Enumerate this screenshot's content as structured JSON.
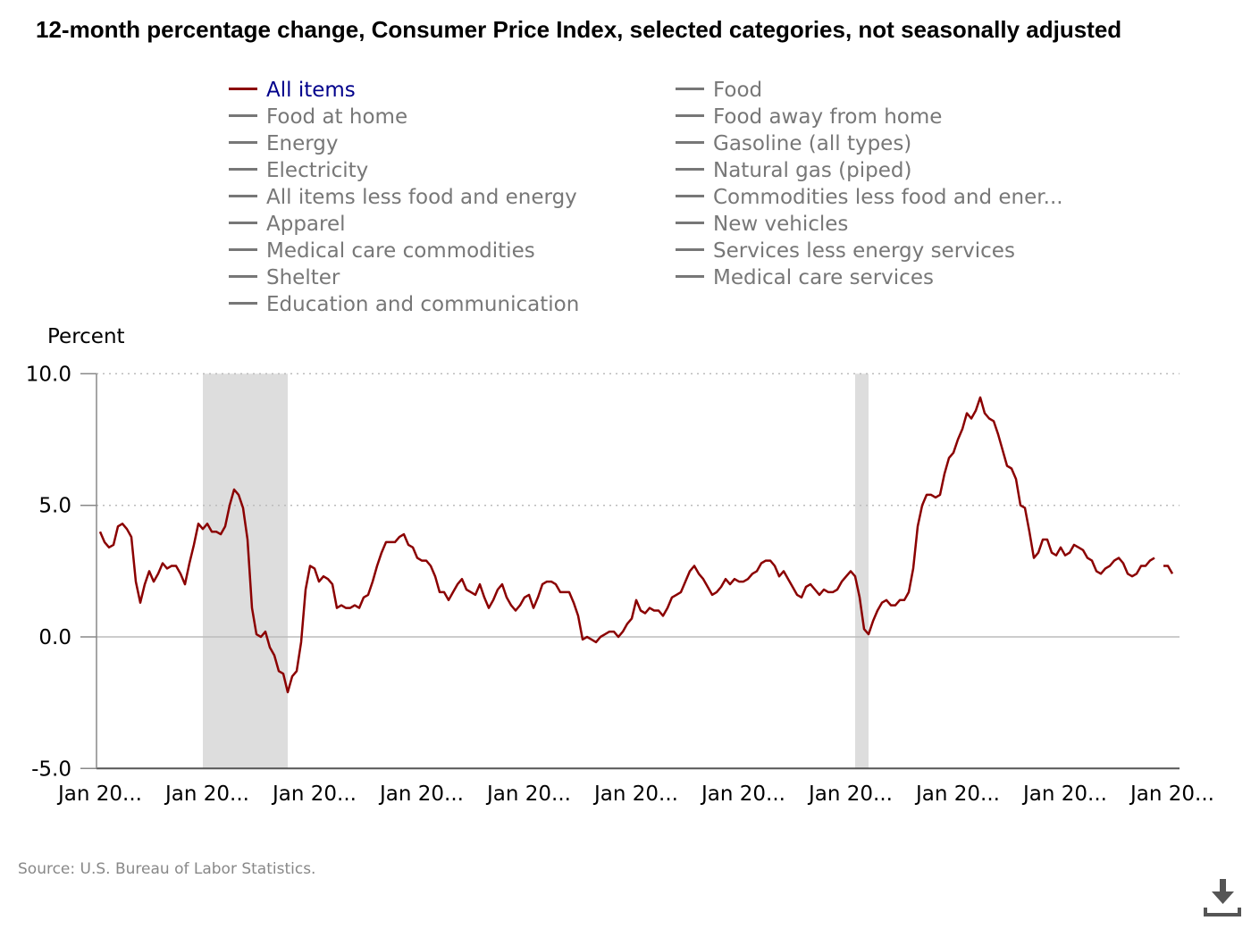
{
  "title": "12-month percentage change, Consumer Price Index, selected categories, not seasonally adjusted",
  "legend": {
    "col1": [
      "All items",
      "Food at home",
      "Energy",
      "Electricity",
      "All items less food and energy",
      "Apparel",
      "Medical care commodities",
      "Shelter",
      "Education and communication"
    ],
    "col2": [
      "Food",
      "Food away from home",
      "Gasoline (all types)",
      "Natural gas (piped)",
      "Commodities less food and ener...",
      "New vehicles",
      "Services less energy services",
      "Medical care services"
    ],
    "active": "All items"
  },
  "source": "Source: U.S. Bureau of Labor Statistics.",
  "colors": {
    "series": "#8b0000",
    "recession": "#dddddd",
    "legend_active": "#00008b",
    "legend_inactive": "#777777"
  },
  "icons": {
    "download": "download-icon"
  },
  "chart_data": {
    "type": "line",
    "ylabel": "Percent",
    "ylim": [
      -5,
      10
    ],
    "yticks": [
      "10.0",
      "5.0",
      "0.0",
      "-5.0"
    ],
    "ytick_values": [
      10,
      5,
      0,
      -5
    ],
    "xticks": [
      "Jan 20...",
      "Jan 20...",
      "Jan 20...",
      "Jan 20...",
      "Jan 20...",
      "Jan 20...",
      "Jan 20...",
      "Jan 20...",
      "Jan 20...",
      "Jan 20...",
      "Jan 20..."
    ],
    "xtick_dates": [
      "2006-01",
      "2008-01",
      "2010-01",
      "2012-01",
      "2014-01",
      "2016-01",
      "2018-01",
      "2020-01",
      "2022-01",
      "2024-01",
      "2026-01"
    ],
    "start": "2006-01",
    "recessions": [
      [
        "2007-12",
        "2009-06"
      ],
      [
        "2020-02",
        "2020-04"
      ]
    ],
    "series": [
      {
        "name": "All items",
        "values": [
          4.0,
          3.6,
          3.4,
          3.5,
          4.2,
          4.3,
          4.1,
          3.8,
          2.1,
          1.3,
          2.0,
          2.5,
          2.1,
          2.4,
          2.8,
          2.6,
          2.7,
          2.7,
          2.4,
          2.0,
          2.8,
          3.5,
          4.3,
          4.1,
          4.3,
          4.0,
          4.0,
          3.9,
          4.2,
          5.0,
          5.6,
          5.4,
          4.9,
          3.7,
          1.1,
          0.1,
          0.0,
          0.2,
          -0.4,
          -0.7,
          -1.3,
          -1.4,
          -2.1,
          -1.5,
          -1.3,
          -0.2,
          1.8,
          2.7,
          2.6,
          2.1,
          2.3,
          2.2,
          2.0,
          1.1,
          1.2,
          1.1,
          1.1,
          1.2,
          1.1,
          1.5,
          1.6,
          2.1,
          2.7,
          3.2,
          3.6,
          3.6,
          3.6,
          3.8,
          3.9,
          3.5,
          3.4,
          3.0,
          2.9,
          2.9,
          2.7,
          2.3,
          1.7,
          1.7,
          1.4,
          1.7,
          2.0,
          2.2,
          1.8,
          1.7,
          1.6,
          2.0,
          1.5,
          1.1,
          1.4,
          1.8,
          2.0,
          1.5,
          1.2,
          1.0,
          1.2,
          1.5,
          1.6,
          1.1,
          1.5,
          2.0,
          2.1,
          2.1,
          2.0,
          1.7,
          1.7,
          1.7,
          1.3,
          0.8,
          -0.1,
          0.0,
          -0.1,
          -0.2,
          0.0,
          0.1,
          0.2,
          0.2,
          0.0,
          0.2,
          0.5,
          0.7,
          1.4,
          1.0,
          0.9,
          1.1,
          1.0,
          1.0,
          0.8,
          1.1,
          1.5,
          1.6,
          1.7,
          2.1,
          2.5,
          2.7,
          2.4,
          2.2,
          1.9,
          1.6,
          1.7,
          1.9,
          2.2,
          2.0,
          2.2,
          2.1,
          2.1,
          2.2,
          2.4,
          2.5,
          2.8,
          2.9,
          2.9,
          2.7,
          2.3,
          2.5,
          2.2,
          1.9,
          1.6,
          1.5,
          1.9,
          2.0,
          1.8,
          1.6,
          1.8,
          1.7,
          1.7,
          1.8,
          2.1,
          2.3,
          2.5,
          2.3,
          1.5,
          0.3,
          0.1,
          0.6,
          1.0,
          1.3,
          1.4,
          1.2,
          1.2,
          1.4,
          1.4,
          1.7,
          2.6,
          4.2,
          5.0,
          5.4,
          5.4,
          5.3,
          5.4,
          6.2,
          6.8,
          7.0,
          7.5,
          7.9,
          8.5,
          8.3,
          8.6,
          9.1,
          8.5,
          8.3,
          8.2,
          7.7,
          7.1,
          6.5,
          6.4,
          6.0,
          5.0,
          4.9,
          4.0,
          3.0,
          3.2,
          3.7,
          3.7,
          3.2,
          3.1,
          3.4,
          3.1,
          3.2,
          3.5,
          3.4,
          3.3,
          3.0,
          2.9,
          2.5,
          2.4,
          2.6,
          2.7,
          2.9,
          3.0,
          2.8,
          2.4,
          2.3,
          2.4,
          2.7,
          2.7,
          2.9,
          3.0,
          null,
          2.7,
          2.7,
          2.4
        ]
      }
    ]
  }
}
